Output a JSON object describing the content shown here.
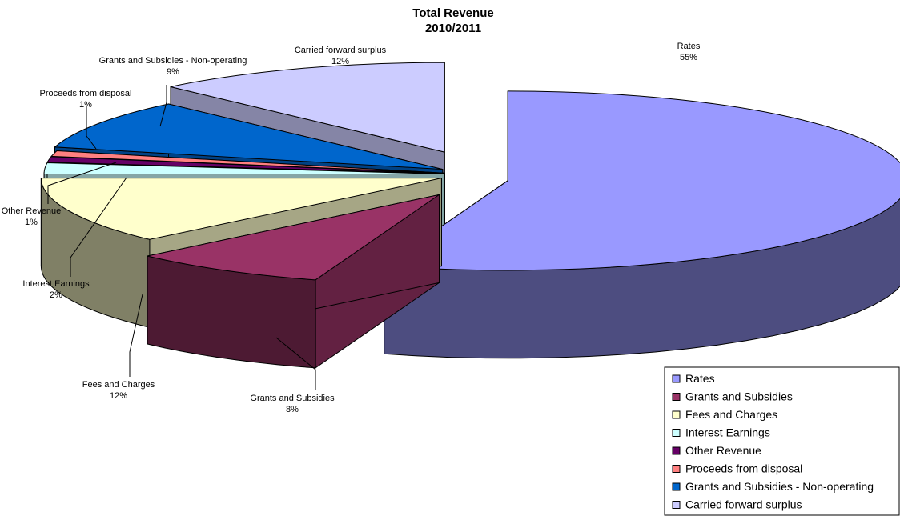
{
  "chart_data": {
    "type": "pie",
    "title_lines": [
      "Total Revenue",
      "2010/2011"
    ],
    "slices": [
      {
        "name": "Rates",
        "percent": 55,
        "label": "55%",
        "color": "#9999FF"
      },
      {
        "name": "Grants and Subsidies",
        "percent": 8,
        "label": "8%",
        "color": "#993366"
      },
      {
        "name": "Fees and Charges",
        "percent": 12,
        "label": "12%",
        "color": "#FFFFCC"
      },
      {
        "name": "Interest Earnings",
        "percent": 2,
        "label": "2%",
        "color": "#CCFFFF"
      },
      {
        "name": "Other Revenue",
        "percent": 1,
        "label": "1%",
        "color": "#660066"
      },
      {
        "name": "Proceeds from disposal",
        "percent": 1,
        "label": "1%",
        "color": "#FF8080"
      },
      {
        "name": "Grants and Subsidies - Non-operating",
        "percent": 9,
        "label": "9%",
        "color": "#0066CC"
      },
      {
        "name": "Carried forward surplus",
        "percent": 12,
        "label": "12%",
        "color": "#CCCCFF"
      }
    ],
    "legend_position": "bottom-right",
    "style": "3d-exploded"
  }
}
